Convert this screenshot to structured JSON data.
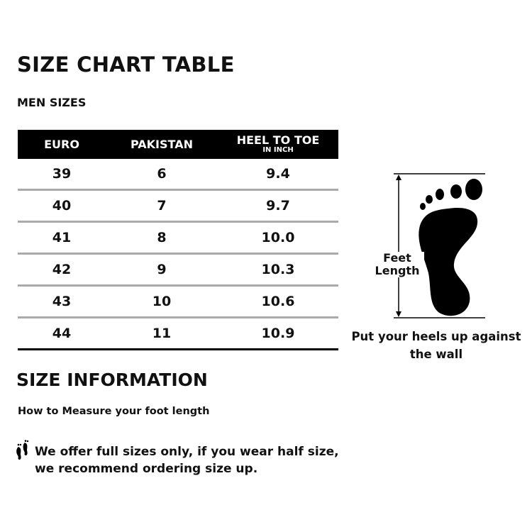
{
  "title": "SIZE CHART TABLE",
  "subtitle": "MEN SIZES",
  "table": {
    "headers": [
      "EURO",
      "PAKISTAN",
      "HEEL TO TOE"
    ],
    "header_note": "IN INCH",
    "rows": [
      [
        "39",
        "6",
        "9.4"
      ],
      [
        "40",
        "7",
        "9.7"
      ],
      [
        "41",
        "8",
        "10.0"
      ],
      [
        "42",
        "9",
        "10.3"
      ],
      [
        "43",
        "10",
        "10.6"
      ],
      [
        "44",
        "11",
        "10.9"
      ]
    ]
  },
  "diagram": {
    "label_line1": "Feet",
    "label_line2": "Length",
    "caption": "Put your heels up against the wall"
  },
  "info": {
    "heading": "SIZE INFORMATION",
    "how_to": "How to Measure your foot length",
    "note": "We offer full sizes only, if you wear half size, we recommend ordering size up.",
    "note_icon": "footprints-icon"
  }
}
